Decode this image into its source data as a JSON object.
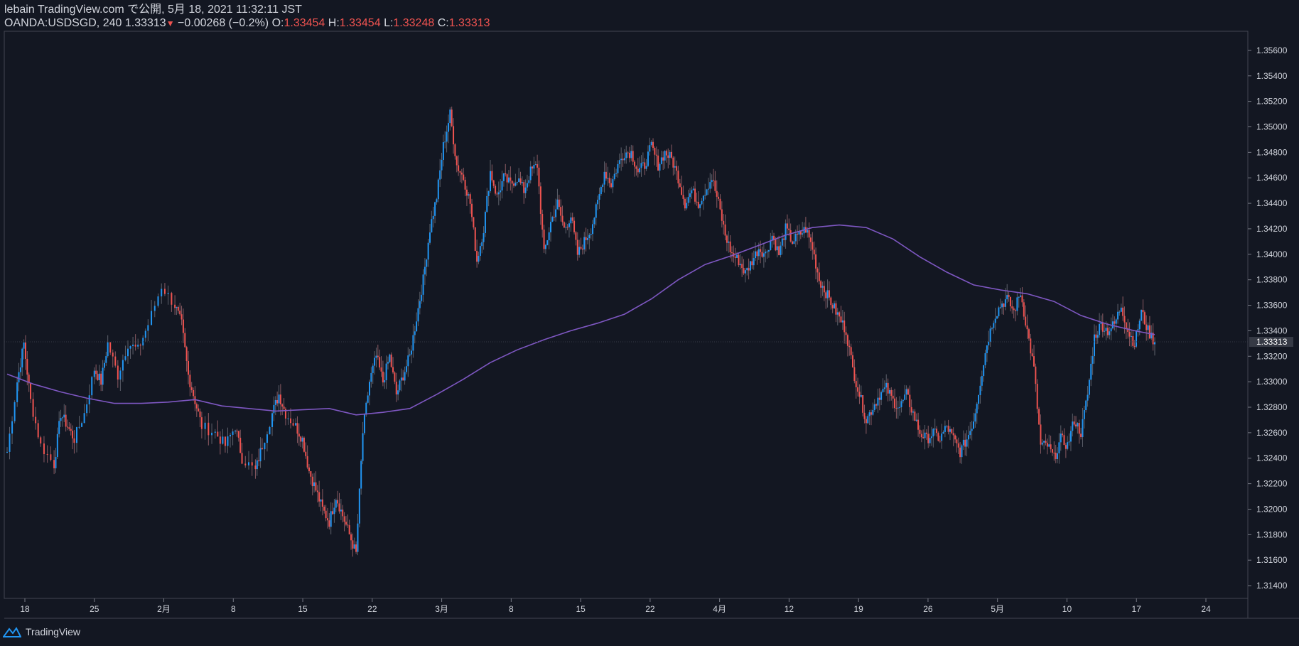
{
  "header": {
    "line1": "lebain TradingView.com で公開, 5月 18, 2021 11:32:11 JST",
    "symbol": "OANDA:USDSGD, 240",
    "last": "1.33313",
    "change": "−0.00268 (−0.2%)",
    "o_label": "O:",
    "o_value": "1.33454",
    "h_label": "H:",
    "h_value": "1.33454",
    "l_label": "L:",
    "l_value": "1.33248",
    "c_label": "C:",
    "c_value": "1.33313"
  },
  "footer": {
    "brand": "TradingView",
    "icon": "tradingview-logo-icon"
  },
  "colors": {
    "background": "#131722",
    "up": "#2196f3",
    "down": "#ef5350",
    "ma": "#7e57c2",
    "grid_line": "#2a2e39",
    "axis_text": "#d1d4dc",
    "price_label_bg": "#363a45"
  },
  "chart_data": {
    "type": "candlestick",
    "ylim": [
      1.313,
      1.3575
    ],
    "y_ticks": [
      "1.35600",
      "1.35400",
      "1.35200",
      "1.35000",
      "1.34800",
      "1.34600",
      "1.34400",
      "1.34200",
      "1.34000",
      "1.33800",
      "1.33600",
      "1.33400",
      "1.33200",
      "1.33000",
      "1.32800",
      "1.32600",
      "1.32400",
      "1.32200",
      "1.32000",
      "1.31800",
      "1.31600",
      "1.31400"
    ],
    "current_price_label": "1.33313",
    "current_price": 1.33313,
    "x_ticks": [
      "18",
      "25",
      "2月",
      "8",
      "15",
      "22",
      "3月",
      "8",
      "15",
      "22",
      "4月",
      "12",
      "19",
      "26",
      "5月",
      "10",
      "17",
      "24"
    ],
    "price_path": [
      [
        0,
        1.3245
      ],
      [
        1.5,
        1.33
      ],
      [
        2.5,
        1.333
      ],
      [
        3.5,
        1.3285
      ],
      [
        5,
        1.325
      ],
      [
        7,
        1.3235
      ],
      [
        8,
        1.3275
      ],
      [
        9,
        1.3265
      ],
      [
        10,
        1.3255
      ],
      [
        11.5,
        1.3275
      ],
      [
        13,
        1.331
      ],
      [
        14,
        1.33
      ],
      [
        15,
        1.333
      ],
      [
        16.5,
        1.3305
      ],
      [
        18,
        1.333
      ],
      [
        19.5,
        1.3325
      ],
      [
        21,
        1.3345
      ],
      [
        23,
        1.3375
      ],
      [
        25,
        1.336
      ],
      [
        26,
        1.3345
      ],
      [
        27,
        1.3305
      ],
      [
        28,
        1.3285
      ],
      [
        29,
        1.3265
      ],
      [
        31,
        1.326
      ],
      [
        32.5,
        1.325
      ],
      [
        34,
        1.3265
      ],
      [
        35,
        1.324
      ],
      [
        37,
        1.323
      ],
      [
        38,
        1.325
      ],
      [
        39.5,
        1.3275
      ],
      [
        40.5,
        1.329
      ],
      [
        41.5,
        1.3275
      ],
      [
        43,
        1.3265
      ],
      [
        44,
        1.3255
      ],
      [
        45,
        1.323
      ],
      [
        46,
        1.3215
      ],
      [
        47,
        1.32
      ],
      [
        48,
        1.319
      ],
      [
        49,
        1.321
      ],
      [
        50,
        1.3195
      ],
      [
        51,
        1.318
      ],
      [
        52,
        1.3165
      ],
      [
        53,
        1.326
      ],
      [
        54,
        1.33
      ],
      [
        55,
        1.332
      ],
      [
        56,
        1.33
      ],
      [
        57,
        1.332
      ],
      [
        58,
        1.329
      ],
      [
        59,
        1.3305
      ],
      [
        60,
        1.332
      ],
      [
        61,
        1.335
      ],
      [
        62,
        1.338
      ],
      [
        63,
        1.342
      ],
      [
        64,
        1.3445
      ],
      [
        65,
        1.3485
      ],
      [
        66,
        1.351
      ],
      [
        67,
        1.347
      ],
      [
        68,
        1.346
      ],
      [
        69,
        1.344
      ],
      [
        70,
        1.3395
      ],
      [
        71,
        1.342
      ],
      [
        72,
        1.3465
      ],
      [
        73,
        1.3445
      ],
      [
        74,
        1.346
      ],
      [
        75,
        1.3455
      ],
      [
        76,
        1.346
      ],
      [
        77,
        1.345
      ],
      [
        78,
        1.3465
      ],
      [
        79,
        1.347
      ],
      [
        80,
        1.34
      ],
      [
        81,
        1.3425
      ],
      [
        82,
        1.344
      ],
      [
        83,
        1.342
      ],
      [
        84,
        1.343
      ],
      [
        85,
        1.34
      ],
      [
        86,
        1.341
      ],
      [
        87,
        1.342
      ],
      [
        88,
        1.344
      ],
      [
        89,
        1.3465
      ],
      [
        90,
        1.3455
      ],
      [
        91,
        1.347
      ],
      [
        92,
        1.348
      ],
      [
        93,
        1.348
      ],
      [
        94,
        1.3465
      ],
      [
        95,
        1.347
      ],
      [
        96,
        1.3485
      ],
      [
        97,
        1.347
      ],
      [
        98,
        1.348
      ],
      [
        99,
        1.3475
      ],
      [
        100,
        1.346
      ],
      [
        101,
        1.344
      ],
      [
        102,
        1.345
      ],
      [
        103,
        1.344
      ],
      [
        104,
        1.345
      ],
      [
        105,
        1.346
      ],
      [
        106,
        1.344
      ],
      [
        107,
        1.3415
      ],
      [
        108,
        1.34
      ],
      [
        109,
        1.3395
      ],
      [
        110,
        1.3385
      ],
      [
        111,
        1.3395
      ],
      [
        112,
        1.3405
      ],
      [
        113,
        1.34
      ],
      [
        114,
        1.3415
      ],
      [
        115,
        1.34
      ],
      [
        116,
        1.342
      ],
      [
        117,
        1.341
      ],
      [
        118,
        1.3415
      ],
      [
        119,
        1.342
      ],
      [
        120,
        1.3405
      ],
      [
        121,
        1.338
      ],
      [
        122,
        1.337
      ],
      [
        123,
        1.336
      ],
      [
        124,
        1.335
      ],
      [
        125,
        1.334
      ],
      [
        126,
        1.331
      ],
      [
        127,
        1.329
      ],
      [
        128,
        1.327
      ],
      [
        129,
        1.328
      ],
      [
        130,
        1.329
      ],
      [
        131,
        1.3295
      ],
      [
        132,
        1.3285
      ],
      [
        133,
        1.328
      ],
      [
        134,
        1.329
      ],
      [
        135,
        1.3275
      ],
      [
        136,
        1.326
      ],
      [
        137,
        1.3255
      ],
      [
        138,
        1.326
      ],
      [
        139,
        1.3255
      ],
      [
        140,
        1.3265
      ],
      [
        141,
        1.3255
      ],
      [
        142,
        1.3245
      ],
      [
        143,
        1.3255
      ],
      [
        144,
        1.327
      ],
      [
        145,
        1.33
      ],
      [
        146,
        1.333
      ],
      [
        147,
        1.335
      ],
      [
        148,
        1.336
      ],
      [
        149,
        1.3365
      ],
      [
        150,
        1.3355
      ],
      [
        151,
        1.337
      ],
      [
        152,
        1.334
      ],
      [
        153,
        1.331
      ],
      [
        154,
        1.325
      ],
      [
        155,
        1.325
      ],
      [
        156,
        1.324
      ],
      [
        157,
        1.3255
      ],
      [
        158,
        1.325
      ],
      [
        159,
        1.327
      ],
      [
        160,
        1.326
      ],
      [
        161,
        1.329
      ],
      [
        162,
        1.3335
      ],
      [
        163,
        1.3345
      ],
      [
        164,
        1.334
      ],
      [
        165,
        1.3345
      ],
      [
        166,
        1.336
      ],
      [
        167,
        1.334
      ],
      [
        168,
        1.333
      ],
      [
        169,
        1.3355
      ],
      [
        170,
        1.334
      ],
      [
        171,
        1.3331
      ]
    ],
    "ma_path": [
      [
        0,
        1.3306
      ],
      [
        4,
        1.3298
      ],
      [
        8,
        1.3292
      ],
      [
        12,
        1.3287
      ],
      [
        16,
        1.3283
      ],
      [
        20,
        1.3283
      ],
      [
        24,
        1.3284
      ],
      [
        28,
        1.3286
      ],
      [
        32,
        1.3281
      ],
      [
        36,
        1.3279
      ],
      [
        40,
        1.3277
      ],
      [
        44,
        1.3278
      ],
      [
        48,
        1.3279
      ],
      [
        52,
        1.3274
      ],
      [
        56,
        1.3276
      ],
      [
        60,
        1.3279
      ],
      [
        64,
        1.329
      ],
      [
        68,
        1.3302
      ],
      [
        72,
        1.3315
      ],
      [
        76,
        1.3325
      ],
      [
        80,
        1.3333
      ],
      [
        84,
        1.334
      ],
      [
        88,
        1.3346
      ],
      [
        92,
        1.3353
      ],
      [
        96,
        1.3365
      ],
      [
        100,
        1.338
      ],
      [
        104,
        1.3392
      ],
      [
        108,
        1.3399
      ],
      [
        112,
        1.3407
      ],
      [
        116,
        1.3415
      ],
      [
        120,
        1.3421
      ],
      [
        124,
        1.3423
      ],
      [
        128,
        1.3421
      ],
      [
        132,
        1.3412
      ],
      [
        136,
        1.3398
      ],
      [
        140,
        1.3386
      ],
      [
        144,
        1.3376
      ],
      [
        148,
        1.3372
      ],
      [
        152,
        1.3369
      ],
      [
        156,
        1.3363
      ],
      [
        160,
        1.3352
      ],
      [
        164,
        1.3345
      ],
      [
        168,
        1.334
      ],
      [
        171,
        1.3337
      ]
    ]
  }
}
